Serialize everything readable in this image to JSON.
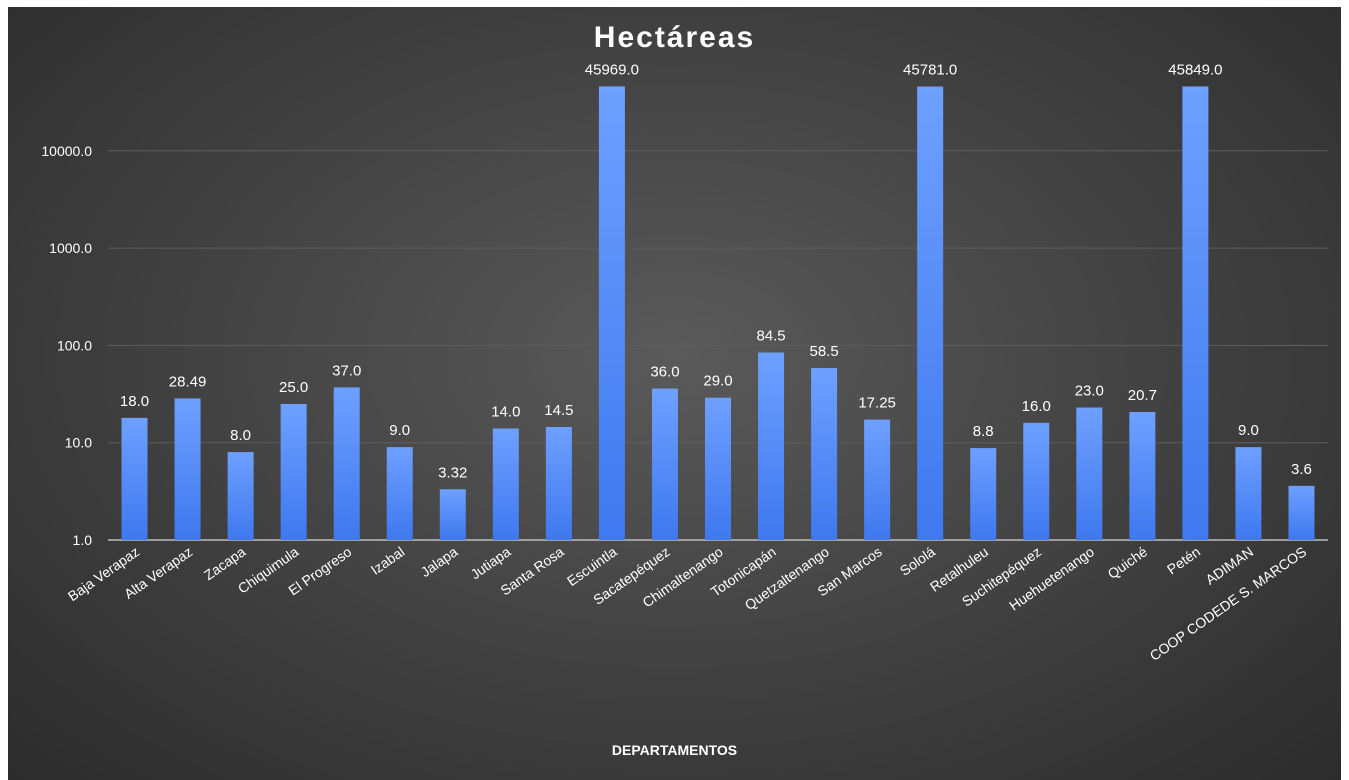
{
  "chart_data": {
    "type": "bar",
    "title": "Hectáreas",
    "xlabel": "DEPARTAMENTOS",
    "ylabel": "",
    "yscale": "log",
    "ylim": [
      1,
      100000
    ],
    "yticks": [
      "1.0",
      "10.0",
      "100.0",
      "1000.0",
      "10000.0"
    ],
    "ytick_values": [
      1,
      10,
      100,
      1000,
      10000
    ],
    "grid": true,
    "bar_color": "#4f86f7",
    "bar_color_light": "#6ea0ff",
    "categories": [
      "Baja Verapaz",
      "Alta Verapaz",
      "Zacapa",
      "Chiquimula",
      "El Progreso",
      "Izabal",
      "Jalapa",
      "Jutiapa",
      "Santa Rosa",
      "Escuintla",
      "Sacatepéquez",
      "Chimaltenango",
      "Totonicapán",
      "Quetzaltenango",
      "San Marcos",
      "Sololá",
      "Retalhuleu",
      "Suchitepéquez",
      "Huehuetenango",
      "Quiché",
      "Petén",
      "ADIMAN",
      "COOP CODEDE S. MARCOS"
    ],
    "values": [
      18.0,
      28.49,
      8.0,
      25.0,
      37.0,
      9.0,
      3.32,
      14.0,
      14.5,
      45969.0,
      36.0,
      29.0,
      84.5,
      58.5,
      17.25,
      45781.0,
      8.8,
      16.0,
      23.0,
      20.7,
      45849.0,
      9.0,
      3.6
    ],
    "labels": [
      "18.0",
      "28.49",
      "8.0",
      "25.0",
      "37.0",
      "9.0",
      "3.32",
      "14.0",
      "14.5",
      "45969.0",
      "36.0",
      "29.0",
      "84.5",
      "58.5",
      "17.25",
      "45781.0",
      "8.8",
      "16.0",
      "23.0",
      "20.7",
      "45849.0",
      "9.0",
      "3.6"
    ]
  }
}
